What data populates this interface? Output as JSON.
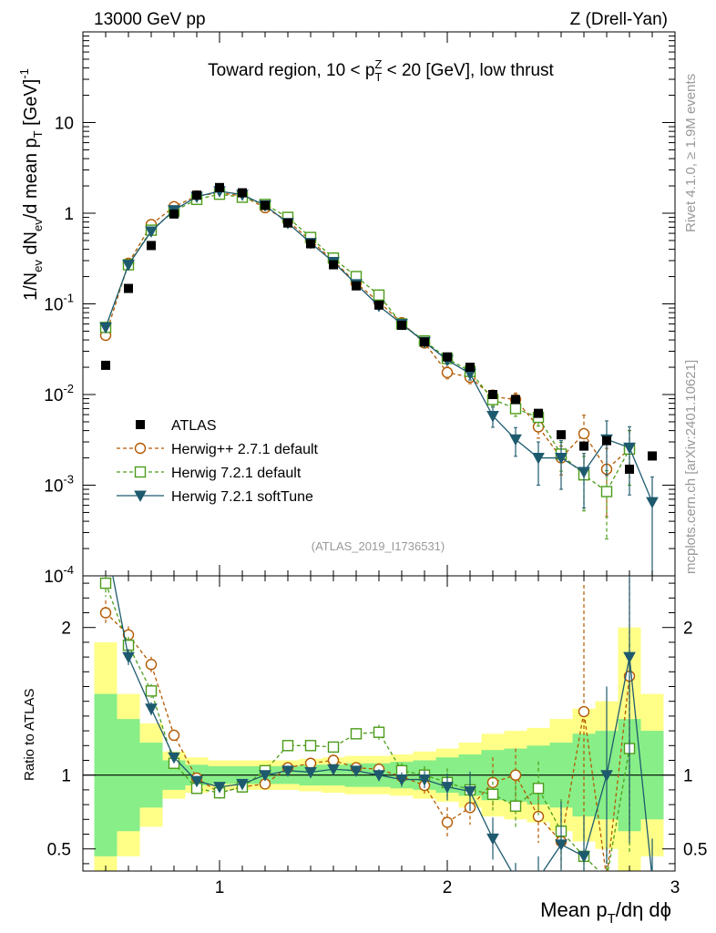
{
  "header": {
    "left": "13000 GeV pp",
    "right": "Z (Drell-Yan)"
  },
  "side": {
    "rivet": "Rivet 4.1.0, ≥ 1.9M events",
    "mcplots": "mcplots.cern.ch [arXiv:2401.10621]"
  },
  "chart_data": {
    "type": "scatter",
    "title_main": "Toward region, 10 < p",
    "title_sup": "Z",
    "title_sub": "T",
    "title_rest": " < 20 [GeV], low thrust",
    "analysis_id": "(ATLAS_2019_I1736531)",
    "ylabel": {
      "a": "1/N",
      "a_sub": "ev",
      "b": " dN",
      "b_sub": "ev",
      "c": "/d mean p",
      "c_sub": "T",
      "d": " [GeV]",
      "d_sup": "-1"
    },
    "xlabel": {
      "a": "Mean p",
      "a_sub": "T",
      "b": "/dη dϕ"
    },
    "ratio_ylabel": "Ratio to ATLAS",
    "x_range": [
      0.4,
      3.0
    ],
    "y_range_log": [
      0.0001,
      100
    ],
    "ratio_range": [
      0.35,
      2.35
    ],
    "x_ticks": [
      {
        "v": 1,
        "label": "1"
      },
      {
        "v": 2,
        "label": "2"
      },
      {
        "v": 3,
        "label": "3"
      }
    ],
    "y_ticks": [
      {
        "v": 0.0001,
        "base": "10",
        "exp": "-4"
      },
      {
        "v": 0.001,
        "base": "10",
        "exp": "-3"
      },
      {
        "v": 0.01,
        "base": "10",
        "exp": "-2"
      },
      {
        "v": 0.1,
        "base": "10",
        "exp": "-1"
      },
      {
        "v": 1,
        "base": "1",
        "exp": ""
      },
      {
        "v": 10,
        "base": "10",
        "exp": ""
      }
    ],
    "ratio_ticks": [
      {
        "v": 0.5,
        "label": "0.5"
      },
      {
        "v": 1,
        "label": "1"
      },
      {
        "v": 2,
        "label": "2"
      }
    ],
    "x": [
      0.5,
      0.6,
      0.7,
      0.8,
      0.9,
      1.0,
      1.1,
      1.2,
      1.3,
      1.4,
      1.5,
      1.6,
      1.7,
      1.8,
      1.9,
      2.0,
      2.1,
      2.2,
      2.3,
      2.4,
      2.5,
      2.6,
      2.7,
      2.8,
      2.9
    ],
    "atlas": [
      0.021,
      0.148,
      0.44,
      0.98,
      1.58,
      1.92,
      1.68,
      1.22,
      0.78,
      0.46,
      0.27,
      0.158,
      0.097,
      0.058,
      0.038,
      0.026,
      0.02,
      0.01,
      0.0088,
      0.0062,
      0.0036,
      0.0027,
      0.0031,
      0.0015,
      0.0021
    ],
    "band_inner": [
      [
        0.45,
        1.55
      ],
      [
        0.62,
        1.38
      ],
      [
        0.78,
        1.22
      ],
      [
        0.9,
        1.1
      ],
      [
        0.93,
        1.07
      ],
      [
        0.94,
        1.06
      ],
      [
        0.94,
        1.06
      ],
      [
        0.94,
        1.06
      ],
      [
        0.94,
        1.06
      ],
      [
        0.93,
        1.07
      ],
      [
        0.93,
        1.07
      ],
      [
        0.92,
        1.08
      ],
      [
        0.92,
        1.08
      ],
      [
        0.91,
        1.09
      ],
      [
        0.9,
        1.1
      ],
      [
        0.88,
        1.12
      ],
      [
        0.86,
        1.14
      ],
      [
        0.83,
        1.17
      ],
      [
        0.82,
        1.18
      ],
      [
        0.8,
        1.2
      ],
      [
        0.78,
        1.22
      ],
      [
        0.72,
        1.28
      ],
      [
        0.7,
        1.3
      ],
      [
        0.62,
        1.38
      ],
      [
        0.7,
        1.3
      ]
    ],
    "band_outer": [
      [
        0.2,
        1.9
      ],
      [
        0.45,
        1.55
      ],
      [
        0.65,
        1.35
      ],
      [
        0.84,
        1.16
      ],
      [
        0.88,
        1.12
      ],
      [
        0.9,
        1.1
      ],
      [
        0.9,
        1.1
      ],
      [
        0.9,
        1.1
      ],
      [
        0.9,
        1.1
      ],
      [
        0.89,
        1.11
      ],
      [
        0.88,
        1.12
      ],
      [
        0.87,
        1.13
      ],
      [
        0.87,
        1.13
      ],
      [
        0.86,
        1.14
      ],
      [
        0.84,
        1.16
      ],
      [
        0.82,
        1.18
      ],
      [
        0.78,
        1.22
      ],
      [
        0.72,
        1.28
      ],
      [
        0.7,
        1.3
      ],
      [
        0.68,
        1.32
      ],
      [
        0.62,
        1.38
      ],
      [
        0.55,
        1.45
      ],
      [
        0.5,
        1.5
      ],
      [
        0.35,
        2.0
      ],
      [
        0.45,
        1.55
      ]
    ],
    "series": [
      {
        "name": "Herwig++ 2.7.1 default",
        "color": "#b35900",
        "marker": "circle",
        "dash": "4,3",
        "values": [
          0.045,
          0.28,
          0.75,
          1.18,
          1.55,
          1.68,
          1.55,
          1.15,
          0.82,
          0.5,
          0.3,
          0.17,
          0.105,
          0.062,
          0.037,
          0.0175,
          0.0155,
          0.0095,
          0.0088,
          0.0044,
          0.002,
          0.0037,
          0.0015,
          0.0025,
          null
        ],
        "errors": [
          0.04,
          0.03,
          0.03,
          0.03,
          0.03,
          0.02,
          0.02,
          0.02,
          0.02,
          0.03,
          0.03,
          0.03,
          0.04,
          0.05,
          0.06,
          0.15,
          0.15,
          0.18,
          0.18,
          0.25,
          0.35,
          0.6,
          0.7,
          0.6,
          0.0
        ],
        "ratio": [
          2.1,
          1.95,
          1.75,
          1.27,
          0.98,
          0.88,
          0.92,
          0.94,
          1.05,
          1.08,
          1.1,
          1.05,
          1.04,
          0.99,
          0.93,
          0.68,
          0.78,
          0.95,
          1.0,
          0.72,
          0.55,
          1.43,
          0.3,
          1.67,
          null
        ]
      },
      {
        "name": "Herwig 7.2.1 default",
        "color": "#4c9c1a",
        "marker": "square",
        "dash": "4,3",
        "values": [
          0.055,
          0.27,
          0.65,
          1.05,
          1.42,
          1.62,
          1.5,
          1.25,
          0.9,
          0.54,
          0.32,
          0.2,
          0.125,
          0.06,
          0.039,
          0.025,
          0.018,
          0.0088,
          0.007,
          0.0056,
          0.0022,
          0.0013,
          0.00085,
          0.0025,
          null
        ],
        "errors": [
          0.04,
          0.03,
          0.03,
          0.03,
          0.03,
          0.02,
          0.02,
          0.02,
          0.02,
          0.03,
          0.03,
          0.03,
          0.04,
          0.05,
          0.06,
          0.1,
          0.12,
          0.15,
          0.18,
          0.2,
          0.35,
          0.6,
          0.7,
          0.6,
          0.0
        ],
        "ratio": [
          2.3,
          1.88,
          1.57,
          1.08,
          0.91,
          0.88,
          0.92,
          1.03,
          1.2,
          1.2,
          1.19,
          1.28,
          1.29,
          1.03,
          1.0,
          0.95,
          0.9,
          0.87,
          0.79,
          0.91,
          0.62,
          0.45,
          0.3,
          1.18,
          null
        ]
      },
      {
        "name": "Herwig 7.2.1 softTune",
        "color": "#1e5a6e",
        "marker": "triangle",
        "dash": "",
        "values": [
          0.055,
          0.27,
          0.63,
          1.08,
          1.52,
          1.75,
          1.6,
          1.22,
          0.78,
          0.47,
          0.29,
          0.165,
          0.095,
          0.06,
          0.038,
          0.024,
          0.017,
          0.0058,
          0.0032,
          0.002,
          0.002,
          0.0014,
          0.0032,
          0.0026,
          0.00065
        ],
        "errors": [
          0.04,
          0.03,
          0.03,
          0.03,
          0.03,
          0.02,
          0.02,
          0.02,
          0.02,
          0.03,
          0.03,
          0.03,
          0.04,
          0.05,
          0.06,
          0.1,
          0.15,
          0.25,
          0.35,
          0.5,
          0.55,
          0.6,
          0.6,
          0.7,
          0.9
        ],
        "ratio": [
          2.6,
          1.8,
          1.45,
          1.12,
          0.96,
          0.92,
          0.94,
          1.0,
          1.03,
          1.02,
          1.04,
          1.03,
          1.0,
          0.97,
          0.97,
          0.92,
          0.89,
          0.57,
          0.3,
          0.3,
          0.53,
          0.45,
          1.0,
          1.8,
          0.3
        ]
      }
    ],
    "legend": {
      "data_label": "ATLAS",
      "placement": "center-left"
    }
  }
}
